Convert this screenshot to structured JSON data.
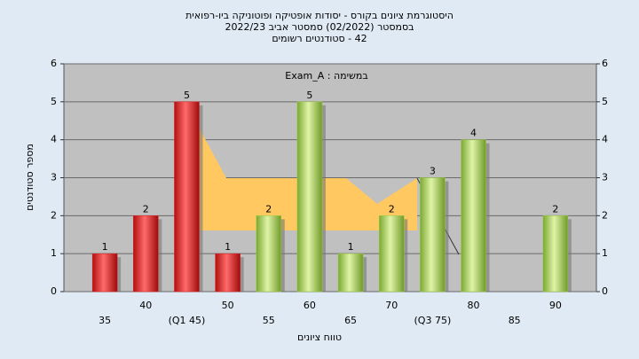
{
  "chart_data": {
    "type": "bar",
    "title": "היסטוגרמת ציונים בקורס - יסודות אופטיקה ופוטוניקה ביו-רפואית",
    "subtitle": [
      "בסמסטר  (02/2022)  סמסטר אביב 2022/23",
      "42 - סטודנטים רשומים"
    ],
    "annotation": "במשימה : Exam_A",
    "x_label": "טווח ציונים",
    "y_label": "מספר סטודנטים",
    "categories": [
      "35",
      "40",
      "(Q1 45)",
      "50",
      "55",
      "60",
      "65",
      "70",
      "(Q3 75)",
      "80",
      "85",
      "90"
    ],
    "values": [
      1,
      2,
      5,
      1,
      2,
      5,
      1,
      2,
      3,
      4,
      null,
      2
    ],
    "colors": [
      "#e02020",
      "#e02020",
      "#e02020",
      "#e02020",
      "#9acd40",
      "#9acd40",
      "#9acd40",
      "#9acd40",
      "#9acd40",
      "#9acd40",
      "#9acd40",
      "#9acd40"
    ],
    "ylim": [
      0,
      6
    ],
    "yticks": [
      0,
      1,
      2,
      3,
      4,
      5,
      6
    ],
    "y2lim": [
      0,
      6
    ],
    "y2ticks": [
      0,
      1,
      2,
      3,
      4,
      5,
      6
    ],
    "grid": true
  }
}
